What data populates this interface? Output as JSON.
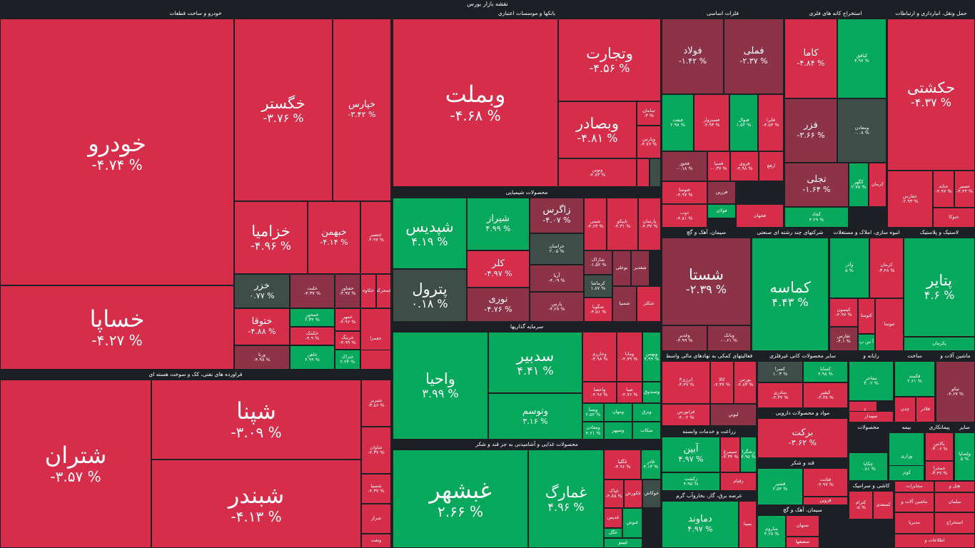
{
  "app": {
    "title": "نقشه بازار بورس"
  },
  "colors": {
    "red": "#d52d4a",
    "dark_red": "#8c3347",
    "green": "#06a95b",
    "neutral": "#3e4d48",
    "background": "#1c1f24"
  },
  "sectors": [
    {
      "id": "khodro",
      "title": "خودرو و ساخت قطعات",
      "tiles": [
        {
          "sym": "خودرو",
          "pct": "-۴.۷۴ %",
          "color": "red"
        },
        {
          "sym": "خساپا",
          "pct": "-۴.۲۷ %",
          "color": "red"
        },
        {
          "sym": "خگستر",
          "pct": "-۳.۷۶ %",
          "color": "red"
        },
        {
          "sym": "خپارس",
          "pct": "-۳.۴۲ %",
          "color": "red"
        },
        {
          "sym": "خزامیا",
          "pct": "-۴.۹۶ %",
          "color": "red"
        },
        {
          "sym": "خبهمن",
          "pct": "-۴.۱۴ %",
          "color": "red"
        },
        {
          "sym": "خنصیر",
          "pct": "-۴.۹۷ %",
          "color": "red"
        },
        {
          "sym": "خزر",
          "pct": "۰.۷۷ %",
          "color": "neutral"
        },
        {
          "sym": "خلنت",
          "pct": "-۴.۳۷ %",
          "color": "dark_red"
        },
        {
          "sym": "خفناور",
          "pct": "-۴.۹۷ %",
          "color": "dark_red"
        },
        {
          "sym": "خکاوه",
          "pct": "",
          "color": "red"
        },
        {
          "sym": "خمحرکه",
          "pct": "",
          "color": "red"
        },
        {
          "sym": "خمحور",
          "pct": "۲.۳۴ %",
          "color": "green"
        },
        {
          "sym": "ختوقا",
          "pct": "-۴.۸۸ %",
          "color": "red"
        },
        {
          "sym": "خکمک",
          "pct": "-۴.۹ %",
          "color": "red"
        },
        {
          "sym": "خمهر",
          "pct": "-۴.۹۶ %",
          "color": "red"
        },
        {
          "sym": "خرینگ",
          "pct": "-۴.۹۹ %",
          "color": "red"
        },
        {
          "sym": "ورنا",
          "pct": "-۴.۹۸ %",
          "color": "dark_red"
        },
        {
          "sym": "خاهن",
          "pct": "۴.۹۹ %",
          "color": "green"
        },
        {
          "sym": "ختراک",
          "pct": "۲.۲۴ %",
          "color": "green"
        },
        {
          "sym": "خعمرا",
          "pct": "",
          "color": "red"
        },
        {
          "sym": "",
          "pct": "",
          "color": "red"
        }
      ]
    },
    {
      "id": "bank",
      "title": "بانکها و موسسات اعتباری",
      "tiles": [
        {
          "sym": "وبملت",
          "pct": "-۴.۶۸ %",
          "color": "red"
        },
        {
          "sym": "وتجارت",
          "pct": "-۴.۵۶ %",
          "color": "red"
        },
        {
          "sym": "وبصادر",
          "pct": "-۴.۸۱ %",
          "color": "red"
        },
        {
          "sym": "سامان",
          "pct": "-۳ %",
          "color": "red"
        },
        {
          "sym": "وپارس",
          "pct": "-۴.۷۶ %",
          "color": "red"
        },
        {
          "sym": "ونوین",
          "pct": "-۴.۸۳ %",
          "color": "red"
        },
        {
          "sym": "",
          "pct": "",
          "color": "red"
        },
        {
          "sym": "",
          "pct": "",
          "color": "neutral"
        }
      ]
    },
    {
      "id": "chemical",
      "title": "محصولات شیمیایی",
      "tiles": [
        {
          "sym": "شپدیس",
          "pct": "۴.۱۹ %",
          "color": "green"
        },
        {
          "sym": "شیراز",
          "pct": "۴.۹۹ %",
          "color": "green"
        },
        {
          "sym": "زاگرس",
          "pct": "-۴.۰۷ %",
          "color": "dark_red"
        },
        {
          "sym": "شبنی",
          "pct": "-۴.۶۳ %",
          "color": "red"
        },
        {
          "sym": "تاپیکو",
          "pct": "-۴.۳۱ %",
          "color": "red"
        },
        {
          "sym": "پارسان",
          "pct": "-۴.۳۷ %",
          "color": "red"
        },
        {
          "sym": "پترول",
          "pct": "۰.۱۸ %",
          "color": "neutral"
        },
        {
          "sym": "خراسان",
          "pct": "۲.۰۵ %",
          "color": "neutral"
        },
        {
          "sym": "شاراک",
          "pct": "-۱.۵۲ %",
          "color": "dark_red"
        },
        {
          "sym": "کلر",
          "pct": "-۴.۹۷ %",
          "color": "red"
        },
        {
          "sym": "آریا",
          "pct": "-۴.۰۹ %",
          "color": "dark_red"
        },
        {
          "sym": "کرماشا",
          "pct": "۱.۸۷ %",
          "color": "neutral"
        },
        {
          "sym": "نوری",
          "pct": "-۴.۷۶ %",
          "color": "dark_red"
        },
        {
          "sym": "پارس",
          "pct": "-۴.۲۸ %",
          "color": "dark_red"
        },
        {
          "sym": "شگویا",
          "pct": "-۴.۵۱ %",
          "color": "red"
        },
        {
          "sym": "بوعلی",
          "pct": "",
          "color": "dark_red"
        },
        {
          "sym": "شغدیر",
          "pct": "",
          "color": "dark_red"
        },
        {
          "sym": "شسپا",
          "pct": "",
          "color": "dark_red"
        },
        {
          "sym": "شکلر",
          "pct": "",
          "color": "red"
        }
      ]
    },
    {
      "id": "invest",
      "title": "سرمایه گذاریها",
      "tiles": [
        {
          "sym": "واحیا",
          "pct": "۳.۹۹ %",
          "color": "green"
        },
        {
          "sym": "سدبیر",
          "pct": "۴.۴۱ %",
          "color": "green"
        },
        {
          "sym": "وتوسم",
          "pct": "۳.۱۶ %",
          "color": "green"
        },
        {
          "sym": "وخارزم",
          "pct": "-۴.۹۸ %",
          "color": "red"
        },
        {
          "sym": "ومانا",
          "pct": "-۴.۷۹ %",
          "color": "red"
        },
        {
          "sym": "وبهمن",
          "pct": "۴.۹۹ %",
          "color": "green"
        },
        {
          "sym": "واحصا",
          "pct": "-۴.۹۶ %",
          "color": "red"
        },
        {
          "sym": "صبا",
          "pct": "-۴.۷۶ %",
          "color": "red"
        },
        {
          "sym": "وصندوق",
          "pct": "",
          "color": "green"
        },
        {
          "sym": "ویسا",
          "pct": "۲.۵۲ %",
          "color": "green"
        },
        {
          "sym": "ومهان",
          "pct": "",
          "color": "green"
        },
        {
          "sym": "وبرق",
          "pct": "",
          "color": "green"
        },
        {
          "sym": "ومعادن",
          "pct": "۴.۶۱ %",
          "color": "green"
        },
        {
          "sym": "وسپهر",
          "pct": "",
          "color": "green"
        },
        {
          "sym": "سکاب",
          "pct": "",
          "color": "green"
        }
      ]
    },
    {
      "id": "food",
      "title": "محصولات غذایی و آشامیدنی به جز قند و شکر",
      "tiles": [
        {
          "sym": "غبشهر",
          "pct": "۲.۶۶ %",
          "color": "green"
        },
        {
          "sym": "غمارگ",
          "pct": "۴.۹۶ %",
          "color": "green"
        },
        {
          "sym": "غگلپا",
          "pct": "-۴.۹۶ %",
          "color": "red"
        },
        {
          "sym": "غدیس",
          "pct": "",
          "color": "red"
        },
        {
          "sym": "غاذر",
          "pct": "۴.۱۳ %",
          "color": "green"
        },
        {
          "sym": "غپاک",
          "pct": "-۴.۸۵ %",
          "color": "red"
        },
        {
          "sym": "غکورش",
          "pct": "",
          "color": "red"
        },
        {
          "sym": "خوکاش",
          "pct": "",
          "color": "neutral"
        },
        {
          "sym": "غگل",
          "pct": "",
          "color": "green"
        },
        {
          "sym": "غنوش",
          "pct": "",
          "color": "green"
        },
        {
          "sym": "غپینو",
          "pct": "",
          "color": "green"
        }
      ]
    },
    {
      "id": "oil",
      "title": "فراورده های نفتی، کک و سوخت هسته ای",
      "tiles": [
        {
          "sym": "شتران",
          "pct": "-۳.۵۷ %",
          "color": "red"
        },
        {
          "sym": "شپنا",
          "pct": "-۳.۰۹ %",
          "color": "red"
        },
        {
          "sym": "شبندر",
          "pct": "-۴.۱۳ %",
          "color": "red"
        },
        {
          "sym": "شبریز",
          "pct": "-۳.۵۶ %",
          "color": "red"
        },
        {
          "sym": "شاوان",
          "pct": "-۴.۳۷ %",
          "color": "red"
        },
        {
          "sym": "شسپا",
          "pct": "-۴.۳۷ %",
          "color": "red"
        },
        {
          "sym": "شراز",
          "pct": "",
          "color": "red"
        },
        {
          "sym": "ونفت",
          "pct": "",
          "color": "red"
        }
      ]
    },
    {
      "id": "metals",
      "title": "فلزات اساسی",
      "tiles": [
        {
          "sym": "فولاد",
          "pct": "-۱.۴۲ %",
          "color": "dark_red"
        },
        {
          "sym": "فملی",
          "pct": "-۲.۳۷ %",
          "color": "dark_red"
        },
        {
          "sym": "فنفت",
          "pct": "۲.۹۸ %",
          "color": "green"
        },
        {
          "sym": "فسبزوار",
          "pct": "-۴.۹۳ %",
          "color": "red"
        },
        {
          "sym": "فنوال",
          "pct": "۱.۵۲ %",
          "color": "green"
        },
        {
          "sym": "فایرا",
          "pct": "-۴.۵۴ %",
          "color": "red"
        },
        {
          "sym": "فخوز",
          "pct": "-۰.۱۸ %",
          "color": "dark_red"
        },
        {
          "sym": "فسپا",
          "pct": "-۰.۳۷ %",
          "color": "red"
        },
        {
          "sym": "فروی",
          "pct": "-۴.۹۸ %",
          "color": "red"
        },
        {
          "sym": "ارفع",
          "pct": "",
          "color": "red"
        },
        {
          "sym": "فتوسا",
          "pct": "-۴.۹۷ %",
          "color": "red"
        },
        {
          "sym": "فزرین",
          "pct": "",
          "color": "dark_red"
        },
        {
          "sym": "فولای",
          "pct": "",
          "color": "green"
        },
        {
          "sym": "ذوب",
          "pct": "-۴.۸۱ %",
          "color": "red"
        },
        {
          "sym": "فجهان",
          "pct": "",
          "color": "red"
        }
      ]
    },
    {
      "id": "mining",
      "title": "استخراج کانه های فلزی",
      "tiles": [
        {
          "sym": "کاما",
          "pct": "-۴.۸۴ %",
          "color": "red"
        },
        {
          "sym": "کیافق",
          "pct": "۴.۹۷ %",
          "color": "green"
        },
        {
          "sym": "فزر",
          "pct": "-۳.۶۶ %",
          "color": "dark_red"
        },
        {
          "sym": "ومعادن",
          "pct": "۰.۰۸ %",
          "color": "neutral"
        },
        {
          "sym": "تجلی",
          "pct": "-۱.۶۴ %",
          "color": "dark_red"
        },
        {
          "sym": "کگهر",
          "pct": "۲.۷۵ %",
          "color": "green"
        },
        {
          "sym": "کرمان",
          "pct": "",
          "color": "red"
        },
        {
          "sym": "کچاد",
          "pct": "۴.۲۹ %",
          "color": "green"
        }
      ]
    },
    {
      "id": "transport",
      "title": "حمل ونقل، انبارداری و ارتباطات",
      "tiles": [
        {
          "sym": "حکشتی",
          "pct": "-۴.۳۷ %",
          "color": "red"
        },
        {
          "sym": "حفارس",
          "pct": "-۲.۹۳ %",
          "color": "red"
        },
        {
          "sym": "حتاید",
          "pct": "-۴.۹۷ %",
          "color": "red"
        },
        {
          "sym": "حسیر",
          "pct": "-۴.۴۳ %",
          "color": "red"
        },
        {
          "sym": "حتوکا",
          "pct": "",
          "color": "red"
        }
      ]
    },
    {
      "id": "cement",
      "title": "سیمان، آهک و گچ",
      "tiles": [
        {
          "sym": "شستا",
          "pct": "-۲.۳۹ %",
          "color": "dark_red"
        },
        {
          "sym": "وغدیر",
          "pct": "-۴.۹۹ %",
          "color": "dark_red"
        },
        {
          "sym": "وبانک",
          "pct": "-۰.۶۱ %",
          "color": "dark_red"
        }
      ]
    },
    {
      "id": "kamaseh",
      "title": "شرکتهای چند رشته ای صنعتی",
      "tiles": [
        {
          "sym": "کماسه",
          "pct": "۴.۴۳ %",
          "color": "green"
        }
      ]
    },
    {
      "id": "realestate",
      "title": "انبوه سازی، املاک و مستغلات",
      "tiles": [
        {
          "sym": "وآذر",
          "pct": "۵ %",
          "color": "green"
        },
        {
          "sym": "کرمان",
          "pct": "-۳.۴۸ %",
          "color": "red"
        },
        {
          "sym": "کیسون",
          "pct": "-۴.۹۷ %",
          "color": "red"
        },
        {
          "sym": "ثفارس",
          "pct": "-۴.۱ %",
          "color": "dark_red"
        },
        {
          "sym": "کتوسا",
          "pct": "",
          "color": "red"
        },
        {
          "sym": "آ س پ",
          "pct": "",
          "color": "green"
        },
        {
          "sym": "ثنوسا",
          "pct": "",
          "color": "red"
        }
      ]
    },
    {
      "id": "rubber",
      "title": "لاستیک و پلاستیک",
      "tiles": [
        {
          "sym": "پتایر",
          "pct": "۴.۶ %",
          "color": "green"
        },
        {
          "sym": "پکرمان",
          "pct": "",
          "color": "green"
        }
      ]
    },
    {
      "id": "finance",
      "title": "فعالیتهای کمکی به نهادهای مالی واسط",
      "tiles": [
        {
          "sym": "انرژی۳",
          "pct": "-۳.۴۷ %",
          "color": "red"
        },
        {
          "sym": "کالا",
          "pct": "-۴.۳۷ %",
          "color": "red"
        },
        {
          "sym": "بورس",
          "pct": "-۴.۸۳ %",
          "color": "red"
        },
        {
          "sym": "فرابورس",
          "pct": "-۴.۰۲ %",
          "color": "red"
        },
        {
          "sym": "لبوتن",
          "pct": "",
          "color": "dark_red"
        }
      ]
    },
    {
      "id": "nonmetal",
      "title": "سایر محصولات کانی غیرفلزی",
      "tiles": [
        {
          "sym": "کسرا",
          "pct": "۱.۰۳ %",
          "color": "neutral"
        },
        {
          "sym": "کساپا",
          "pct": "۴.۹۸ %",
          "color": "green"
        },
        {
          "sym": "ساذری",
          "pct": "-۴.۳۷ %",
          "color": "red"
        },
        {
          "sym": "کیقیر",
          "pct": "-۴.۳۸ %",
          "color": "red"
        }
      ]
    },
    {
      "id": "pharma",
      "title": "مواد و محصولات دارویی",
      "tiles": [
        {
          "sym": "برکت",
          "pct": "-۳.۶۲ %",
          "color": "red"
        }
      ]
    },
    {
      "id": "computer",
      "title": "رایانه و",
      "tiles": [
        {
          "sym": "مفاخر",
          "pct": "۳.۰۲ %",
          "color": "green"
        },
        {
          "sym": "آپ",
          "pct": "",
          "color": "red"
        },
        {
          "sym": "سپیدار",
          "pct": "",
          "color": "red"
        }
      ]
    },
    {
      "id": "construction",
      "title": "ساخت",
      "tiles": [
        {
          "sym": "فکمند",
          "pct": "۲.۶۱ %",
          "color": "green"
        },
        {
          "sym": "چدن",
          "pct": "",
          "color": "red"
        },
        {
          "sym": "فلاذر",
          "pct": "",
          "color": "red"
        }
      ]
    },
    {
      "id": "machinery",
      "title": "ماشین آلات و",
      "tiles": [
        {
          "sym": "تیکو",
          "pct": "-۴.۶۷ %",
          "color": "dark_red"
        }
      ]
    },
    {
      "id": "utilities",
      "title": "زراعت و خدمات وابسته",
      "tiles": [
        {
          "sym": "آبین",
          "pct": "۴.۹۷ %",
          "color": "green"
        },
        {
          "sym": "سیمرغ",
          "pct": "-۴.۳۴ %",
          "color": "red"
        },
        {
          "sym": "زکشت",
          "pct": "۴.۹۵ %",
          "color": "green"
        },
        {
          "sym": "زقیام",
          "pct": "",
          "color": "red"
        },
        {
          "sym": "زشگرا",
          "pct": "۴.۹۵ %",
          "color": "green"
        }
      ]
    },
    {
      "id": "sugar",
      "title": "قند و شکر",
      "tiles": [
        {
          "sym": "قشیر",
          "pct": "۲.۵۴ %",
          "color": "green"
        },
        {
          "sym": "قثابت",
          "pct": "-۴.۹۷ %",
          "color": "red"
        },
        {
          "sym": "قزوین",
          "pct": "",
          "color": "red"
        }
      ]
    },
    {
      "id": "power",
      "title": "عرضه برق، گاز، بخاروآب گرم",
      "tiles": [
        {
          "sym": "دماوند",
          "pct": "۴.۹۷ %",
          "color": "green"
        },
        {
          "sym": "بمپنا",
          "pct": "",
          "color": "red"
        }
      ]
    },
    {
      "id": "ceramics",
      "title": "کاشی و سرامیک",
      "tiles": [
        {
          "sym": "کترام",
          "pct": "-۵ %",
          "color": "red"
        },
        {
          "sym": "کسعدی",
          "pct": "",
          "color": "red"
        }
      ]
    },
    {
      "id": "cement2",
      "title": "سیمان، آهک و گچ",
      "tiles": [
        {
          "sym": "ساروم",
          "pct": "۴.۶۵ %",
          "color": "green"
        },
        {
          "sym": "سبهان",
          "pct": "",
          "color": "red"
        },
        {
          "sym": "سصفها",
          "pct": "",
          "color": "red"
        }
      ]
    },
    {
      "id": "telecom",
      "title": "مخابرات",
      "tiles": [
        {
          "sym": "ثبانکت",
          "pct": "",
          "color": "dark_red"
        }
      ]
    },
    {
      "id": "print",
      "title": "محصولات",
      "tiles": [
        {
          "sym": "چکاپا",
          "pct": "۰.۸۱ %",
          "color": "green"
        }
      ]
    },
    {
      "id": "insurance",
      "title": "بیمه",
      "tiles": [
        {
          "sym": "وزاری",
          "pct": "",
          "color": "green"
        },
        {
          "sym": "کوثر",
          "pct": "",
          "color": "green"
        }
      ]
    },
    {
      "id": "contractors",
      "title": "پیمانکاری",
      "tiles": [
        {
          "sym": "بالاس",
          "pct": "-۳.۰۶ %",
          "color": "red"
        },
        {
          "sym": "خمحرا",
          "pct": "-۳.۴۷ %",
          "color": "red"
        }
      ]
    },
    {
      "id": "others",
      "title": "سایر",
      "tiles": [
        {
          "sym": "ولساپا",
          "pct": "۵ %",
          "color": "green"
        }
      ]
    },
    {
      "id": "misc",
      "title": "",
      "tiles": [
        {
          "sym": "مخابرات",
          "pct": "",
          "color": "red"
        },
        {
          "sym": "ماشین آلات و",
          "pct": "",
          "color": "red"
        },
        {
          "sym": "هتل و",
          "pct": "",
          "color": "red"
        },
        {
          "sym": "مبلمان",
          "pct": "",
          "color": "red"
        },
        {
          "sym": "مدیریا",
          "pct": "",
          "color": "red"
        },
        {
          "sym": "استخراج",
          "pct": "",
          "color": "red"
        },
        {
          "sym": "اطلاعات و",
          "pct": "",
          "color": "red"
        }
      ]
    }
  ]
}
